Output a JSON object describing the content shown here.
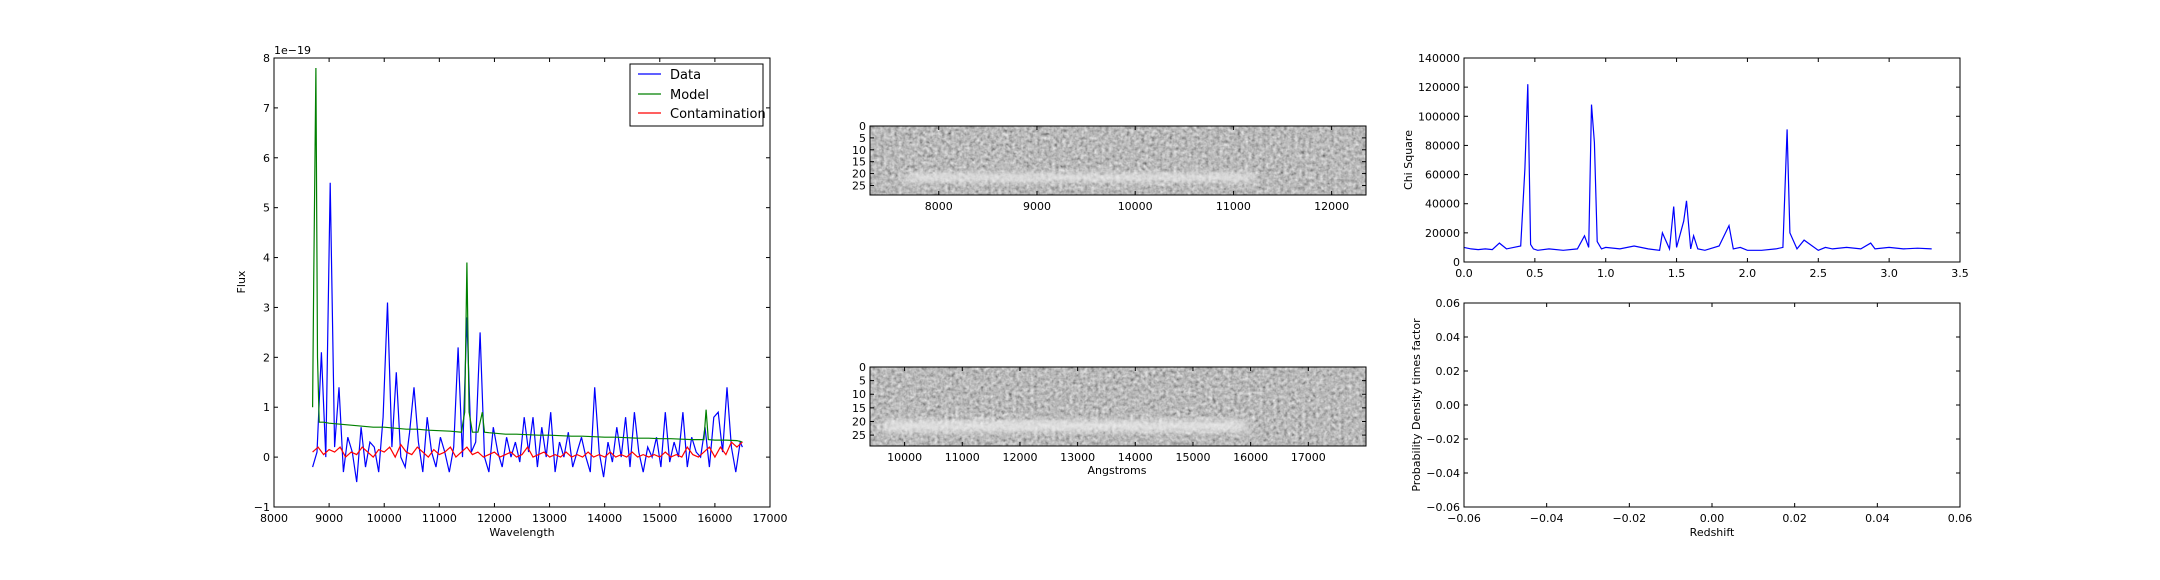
{
  "chart_data": [
    {
      "type": "line",
      "title": "",
      "xlabel": "Wavelength",
      "ylabel": "Flux",
      "offset_text": "1e−19",
      "xlim": [
        8000,
        17000
      ],
      "ylim": [
        -1,
        8
      ],
      "x_ticks": [
        "8000",
        "9000",
        "10000",
        "11000",
        "12000",
        "13000",
        "14000",
        "15000",
        "16000",
        "17000"
      ],
      "y_ticks": [
        "−1",
        "0",
        "1",
        "2",
        "3",
        "4",
        "5",
        "6",
        "7",
        "8"
      ],
      "legend": {
        "placement": "top-right",
        "entries": [
          "Data",
          "Model",
          "Contamination"
        ]
      },
      "grid": false,
      "series": [
        {
          "name": "Data",
          "color": "#0000ff",
          "x": [
            8700,
            8780,
            8860,
            8940,
            9020,
            9100,
            9180,
            9260,
            9340,
            9420,
            9500,
            9580,
            9660,
            9740,
            9820,
            9900,
            9980,
            10060,
            10140,
            10220,
            10300,
            10380,
            10460,
            10540,
            10620,
            10700,
            10780,
            10860,
            10940,
            11020,
            11100,
            11180,
            11260,
            11340,
            11420,
            11500,
            11580,
            11660,
            11740,
            11820,
            11900,
            11980,
            12060,
            12140,
            12220,
            12300,
            12380,
            12460,
            12540,
            12620,
            12700,
            12780,
            12860,
            12940,
            13020,
            13100,
            13180,
            13260,
            13340,
            13420,
            13500,
            13580,
            13660,
            13740,
            13820,
            13900,
            13980,
            14060,
            14140,
            14220,
            14300,
            14380,
            14460,
            14540,
            14620,
            14700,
            14780,
            14860,
            14940,
            15020,
            15100,
            15180,
            15260,
            15340,
            15420,
            15500,
            15580,
            15660,
            15740,
            15820,
            15900,
            15980,
            16060,
            16140,
            16220,
            16300,
            16380,
            16460,
            16500
          ],
          "y": [
            -0.2,
            0.1,
            2.1,
            0.0,
            5.5,
            0.2,
            1.4,
            -0.3,
            0.4,
            0.1,
            -0.5,
            0.6,
            -0.2,
            0.3,
            0.2,
            -0.3,
            0.8,
            3.1,
            0.2,
            1.7,
            0.0,
            -0.2,
            0.5,
            1.4,
            0.3,
            -0.3,
            0.8,
            0.1,
            -0.2,
            0.4,
            0.1,
            -0.3,
            0.2,
            2.2,
            0.0,
            2.8,
            0.1,
            0.3,
            2.5,
            0.0,
            -0.3,
            0.6,
            0.1,
            -0.2,
            0.4,
            0.0,
            0.3,
            -0.1,
            0.8,
            0.1,
            0.8,
            -0.2,
            0.6,
            0.0,
            0.9,
            -0.3,
            0.3,
            0.0,
            0.5,
            -0.2,
            0.1,
            0.4,
            0.0,
            -0.3,
            1.4,
            0.1,
            -0.4,
            0.3,
            -0.1,
            0.6,
            0.0,
            0.8,
            -0.2,
            0.9,
            0.1,
            -0.3,
            0.2,
            0.0,
            0.4,
            -0.2,
            0.9,
            -0.1,
            0.3,
            0.0,
            0.9,
            -0.2,
            0.4,
            0.1,
            0.0,
            0.6,
            -0.2,
            0.8,
            0.9,
            0.1,
            1.4,
            0.2,
            -0.3,
            0.3,
            0.2
          ]
        },
        {
          "name": "Model",
          "color": "#008000",
          "x": [
            8700,
            8720,
            8760,
            8790,
            8820,
            8900,
            9000,
            9200,
            9400,
            9600,
            9800,
            10000,
            10200,
            10400,
            10600,
            10800,
            11000,
            11200,
            11400,
            11460,
            11500,
            11540,
            11600,
            11700,
            11780,
            11820,
            11900,
            12000,
            12200,
            12400,
            12600,
            12800,
            13000,
            13200,
            13400,
            13600,
            13800,
            14000,
            14200,
            14400,
            14600,
            14800,
            15000,
            15200,
            15400,
            15600,
            15800,
            15840,
            15880,
            16000,
            16200,
            16400,
            16500
          ],
          "y": [
            1.0,
            3.5,
            7.8,
            2.0,
            0.7,
            0.7,
            0.68,
            0.66,
            0.64,
            0.62,
            0.6,
            0.6,
            0.58,
            0.56,
            0.56,
            0.54,
            0.53,
            0.52,
            0.5,
            0.9,
            3.9,
            0.9,
            0.5,
            0.5,
            0.9,
            0.5,
            0.49,
            0.48,
            0.46,
            0.46,
            0.45,
            0.44,
            0.44,
            0.43,
            0.42,
            0.42,
            0.41,
            0.4,
            0.4,
            0.39,
            0.38,
            0.38,
            0.37,
            0.37,
            0.36,
            0.35,
            0.35,
            0.95,
            0.35,
            0.34,
            0.34,
            0.33,
            0.3
          ]
        },
        {
          "name": "Contamination",
          "color": "#ff0000",
          "x": [
            8700,
            8800,
            8900,
            9000,
            9100,
            9200,
            9300,
            9400,
            9500,
            9600,
            9700,
            9800,
            9900,
            10000,
            10100,
            10200,
            10300,
            10400,
            10500,
            10600,
            10700,
            10800,
            10900,
            11000,
            11100,
            11200,
            11300,
            11400,
            11500,
            11600,
            11700,
            11800,
            11900,
            12000,
            12100,
            12200,
            12300,
            12400,
            12500,
            12600,
            12700,
            12800,
            12900,
            13000,
            13100,
            13200,
            13300,
            13400,
            13500,
            13600,
            13700,
            13800,
            13900,
            14000,
            14100,
            14200,
            14300,
            14400,
            14500,
            14600,
            14700,
            14800,
            14900,
            15000,
            15100,
            15200,
            15300,
            15400,
            15500,
            15600,
            15700,
            15800,
            15900,
            16000,
            16100,
            16200,
            16300,
            16400,
            16500
          ],
          "y": [
            0.1,
            0.2,
            0.05,
            0.15,
            0.1,
            0.2,
            0.0,
            0.1,
            0.05,
            0.2,
            0.1,
            0.0,
            0.15,
            0.1,
            0.2,
            0.0,
            0.25,
            0.1,
            0.05,
            0.2,
            0.1,
            0.0,
            0.15,
            0.05,
            0.1,
            0.2,
            0.0,
            0.1,
            0.2,
            0.05,
            0.1,
            0.0,
            0.05,
            0.1,
            0.0,
            0.05,
            0.1,
            0.0,
            0.05,
            0.2,
            0.0,
            0.05,
            0.1,
            0.0,
            0.05,
            0.0,
            0.1,
            0.0,
            0.05,
            0.0,
            0.1,
            0.0,
            0.05,
            0.0,
            0.1,
            0.0,
            0.05,
            0.0,
            0.1,
            0.0,
            0.05,
            0.0,
            0.05,
            0.0,
            0.1,
            0.0,
            0.05,
            0.0,
            0.2,
            0.05,
            0.0,
            0.1,
            0.2,
            0.0,
            0.2,
            0.05,
            0.3,
            0.2,
            0.3
          ]
        }
      ]
    },
    {
      "type": "heatmap",
      "title": "",
      "xlabel": "",
      "ylabel": "",
      "xlim": [
        7300,
        12350
      ],
      "ylim": [
        29,
        0
      ],
      "x_ticks": [
        "8000",
        "9000",
        "10000",
        "11000",
        "12000"
      ],
      "y_ticks": [
        "0",
        "5",
        "10",
        "15",
        "20",
        "25"
      ],
      "colormap": "gray",
      "bright_band": {
        "rows": [
          19,
          24
        ],
        "x_range": [
          8000,
          11000
        ]
      }
    },
    {
      "type": "heatmap",
      "title": "",
      "xlabel": "Angstroms",
      "ylabel": "",
      "xlim": [
        9400,
        18000
      ],
      "ylim": [
        29,
        0
      ],
      "x_ticks": [
        "10000",
        "11000",
        "12000",
        "13000",
        "14000",
        "15000",
        "16000",
        "17000"
      ],
      "y_ticks": [
        "0",
        "5",
        "10",
        "15",
        "20",
        "25"
      ],
      "colormap": "gray",
      "bright_band": {
        "rows": [
          19,
          25
        ],
        "x_range": [
          9600,
          16000
        ]
      }
    },
    {
      "type": "line",
      "title": "",
      "xlabel": "",
      "ylabel": "Chi Square",
      "xlim": [
        0.0,
        3.5
      ],
      "ylim": [
        0,
        140000
      ],
      "x_ticks": [
        "0.0",
        "0.5",
        "1.0",
        "1.5",
        "2.0",
        "2.5",
        "3.0",
        "3.5"
      ],
      "y_ticks": [
        "0",
        "20000",
        "40000",
        "60000",
        "80000",
        "100000",
        "120000",
        "140000"
      ],
      "grid": false,
      "series": [
        {
          "color": "#0000ff",
          "x": [
            0.0,
            0.05,
            0.1,
            0.15,
            0.2,
            0.25,
            0.3,
            0.35,
            0.4,
            0.43,
            0.45,
            0.47,
            0.49,
            0.52,
            0.6,
            0.7,
            0.8,
            0.85,
            0.88,
            0.9,
            0.92,
            0.94,
            0.97,
            1.0,
            1.1,
            1.2,
            1.3,
            1.38,
            1.4,
            1.45,
            1.48,
            1.5,
            1.55,
            1.57,
            1.6,
            1.62,
            1.65,
            1.7,
            1.8,
            1.87,
            1.9,
            1.95,
            2.0,
            2.1,
            2.2,
            2.25,
            2.28,
            2.3,
            2.35,
            2.4,
            2.5,
            2.55,
            2.6,
            2.7,
            2.8,
            2.87,
            2.9,
            3.0,
            3.1,
            3.2,
            3.3
          ],
          "y": [
            10000,
            9000,
            8500,
            9000,
            8500,
            13000,
            9000,
            10000,
            11000,
            64000,
            122000,
            12000,
            9000,
            8000,
            9000,
            8000,
            9000,
            18000,
            10000,
            108000,
            82000,
            14000,
            9000,
            10000,
            9000,
            11000,
            9000,
            8000,
            20000,
            9000,
            38000,
            10000,
            28000,
            42000,
            9000,
            18000,
            9000,
            8000,
            11000,
            25000,
            9000,
            10000,
            8000,
            8000,
            9000,
            10000,
            91000,
            20000,
            9000,
            15000,
            8000,
            10000,
            9000,
            10000,
            9000,
            13000,
            9000,
            10000,
            9000,
            9500,
            9000
          ]
        }
      ]
    },
    {
      "type": "line",
      "title": "",
      "xlabel": "Redshift",
      "ylabel": "Probability Density times factor",
      "xlim": [
        -0.06,
        0.06
      ],
      "ylim": [
        -0.06,
        0.06
      ],
      "x_ticks": [
        "−0.06",
        "−0.04",
        "−0.02",
        "0.00",
        "0.02",
        "0.04",
        "0.06"
      ],
      "y_ticks": [
        "−0.06",
        "−0.04",
        "−0.02",
        "0.00",
        "0.02",
        "0.04",
        "0.06"
      ],
      "grid": false,
      "series": []
    }
  ]
}
